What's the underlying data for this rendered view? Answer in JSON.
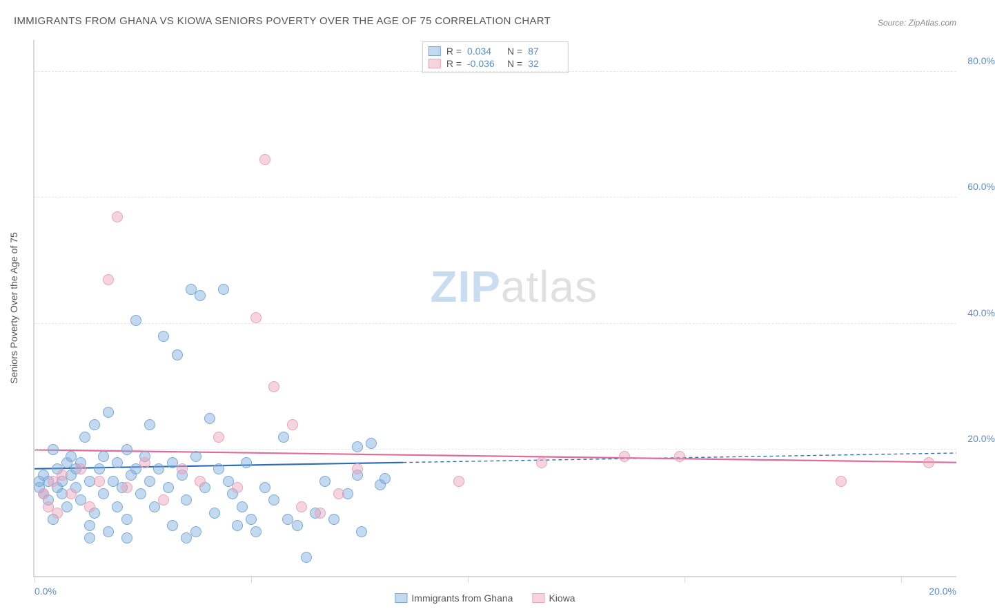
{
  "title": "IMMIGRANTS FROM GHANA VS KIOWA SENIORS POVERTY OVER THE AGE OF 75 CORRELATION CHART",
  "source": "Source: ZipAtlas.com",
  "watermark_zip": "ZIP",
  "watermark_atlas": "atlas",
  "y_axis_label": "Seniors Poverty Over the Age of 75",
  "chart": {
    "type": "scatter",
    "xlim": [
      0,
      20
    ],
    "ylim": [
      0,
      85
    ],
    "ytick_values": [
      20,
      40,
      60,
      80
    ],
    "ytick_labels": [
      "20.0%",
      "40.0%",
      "60.0%",
      "80.0%"
    ],
    "x_axis_min_label": "0.0%",
    "x_axis_max_label": "20.0%",
    "x_tick_percents": [
      0,
      23.5,
      47,
      70.5,
      94
    ],
    "grid_color": "#e5e5e5",
    "background_color": "#ffffff",
    "axis_color": "#d9d9d9",
    "tick_label_color": "#5b8bc9",
    "marker_radius": 8,
    "series": [
      {
        "name": "Immigrants from Ghana",
        "fill": "rgba(120,170,220,0.45)",
        "stroke": "#7ba9d6",
        "line_color": "#2e6fb4",
        "R": "0.034",
        "N": "87",
        "trend": {
          "y_at_x0": 17.0,
          "y_at_xmax": 19.5,
          "solid_until_x": 8.0
        },
        "points": [
          [
            0.1,
            14
          ],
          [
            0.1,
            15
          ],
          [
            0.2,
            13
          ],
          [
            0.2,
            16
          ],
          [
            0.3,
            15
          ],
          [
            0.3,
            12
          ],
          [
            0.4,
            20
          ],
          [
            0.4,
            9
          ],
          [
            0.5,
            14
          ],
          [
            0.5,
            17
          ],
          [
            0.6,
            15
          ],
          [
            0.6,
            13
          ],
          [
            0.7,
            18
          ],
          [
            0.7,
            11
          ],
          [
            0.8,
            16
          ],
          [
            0.8,
            19
          ],
          [
            0.9,
            17
          ],
          [
            0.9,
            14
          ],
          [
            1.0,
            18
          ],
          [
            1.0,
            12
          ],
          [
            1.1,
            22
          ],
          [
            1.2,
            15
          ],
          [
            1.2,
            8
          ],
          [
            1.3,
            24
          ],
          [
            1.3,
            10
          ],
          [
            1.4,
            17
          ],
          [
            1.5,
            19
          ],
          [
            1.5,
            13
          ],
          [
            1.6,
            26
          ],
          [
            1.6,
            7
          ],
          [
            1.7,
            15
          ],
          [
            1.8,
            18
          ],
          [
            1.8,
            11
          ],
          [
            1.9,
            14
          ],
          [
            2.0,
            20
          ],
          [
            2.0,
            9
          ],
          [
            2.1,
            16
          ],
          [
            2.2,
            17
          ],
          [
            2.2,
            40.5
          ],
          [
            2.3,
            13
          ],
          [
            2.4,
            19
          ],
          [
            2.5,
            15
          ],
          [
            2.5,
            24
          ],
          [
            2.6,
            11
          ],
          [
            2.7,
            17
          ],
          [
            2.8,
            38
          ],
          [
            2.9,
            14
          ],
          [
            3.0,
            18
          ],
          [
            3.0,
            8
          ],
          [
            3.1,
            35
          ],
          [
            3.2,
            16
          ],
          [
            3.3,
            12
          ],
          [
            3.4,
            45.5
          ],
          [
            3.5,
            19
          ],
          [
            3.5,
            7
          ],
          [
            3.6,
            44.5
          ],
          [
            3.7,
            14
          ],
          [
            3.8,
            25
          ],
          [
            3.9,
            10
          ],
          [
            4.0,
            17
          ],
          [
            4.1,
            45.5
          ],
          [
            4.2,
            15
          ],
          [
            4.3,
            13
          ],
          [
            4.4,
            8
          ],
          [
            4.5,
            11
          ],
          [
            4.6,
            18
          ],
          [
            4.7,
            9
          ],
          [
            4.8,
            7
          ],
          [
            5.0,
            14
          ],
          [
            5.2,
            12
          ],
          [
            5.4,
            22
          ],
          [
            5.5,
            9
          ],
          [
            5.7,
            8
          ],
          [
            5.9,
            3
          ],
          [
            6.1,
            10
          ],
          [
            6.3,
            15
          ],
          [
            6.5,
            9
          ],
          [
            6.8,
            13
          ],
          [
            7.0,
            16
          ],
          [
            7.1,
            7
          ],
          [
            7.3,
            21
          ],
          [
            7.5,
            14.5
          ],
          [
            7.6,
            15.5
          ],
          [
            7.0,
            20.5
          ],
          [
            1.2,
            6
          ],
          [
            2.0,
            6
          ],
          [
            3.3,
            6
          ]
        ]
      },
      {
        "name": "Kiowa",
        "fill": "rgba(235,160,185,0.45)",
        "stroke": "#e7a3ba",
        "line_color": "#e06a98",
        "R": "-0.036",
        "N": "32",
        "trend": {
          "y_at_x0": 20.0,
          "y_at_xmax": 18.0,
          "solid_until_x": 20.0
        },
        "points": [
          [
            0.2,
            13
          ],
          [
            0.3,
            11
          ],
          [
            0.4,
            15
          ],
          [
            0.5,
            10
          ],
          [
            0.6,
            16
          ],
          [
            0.8,
            13
          ],
          [
            1.0,
            17
          ],
          [
            1.2,
            11
          ],
          [
            1.4,
            15
          ],
          [
            1.6,
            47
          ],
          [
            1.8,
            57
          ],
          [
            2.0,
            14
          ],
          [
            2.4,
            18
          ],
          [
            2.8,
            12
          ],
          [
            3.2,
            17
          ],
          [
            3.6,
            15
          ],
          [
            4.0,
            22
          ],
          [
            4.4,
            14
          ],
          [
            4.8,
            41
          ],
          [
            5.0,
            66
          ],
          [
            5.2,
            30
          ],
          [
            5.6,
            24
          ],
          [
            5.8,
            11
          ],
          [
            6.2,
            10
          ],
          [
            6.6,
            13
          ],
          [
            7.0,
            17
          ],
          [
            9.2,
            15
          ],
          [
            11.0,
            18
          ],
          [
            12.8,
            19
          ],
          [
            14.0,
            19
          ],
          [
            17.5,
            15
          ],
          [
            19.4,
            18
          ]
        ]
      }
    ]
  },
  "legend": {
    "series1_label": "Immigrants from Ghana",
    "series2_label": "Kiowa"
  },
  "stats_labels": {
    "R": "R  =",
    "N": "N  ="
  }
}
